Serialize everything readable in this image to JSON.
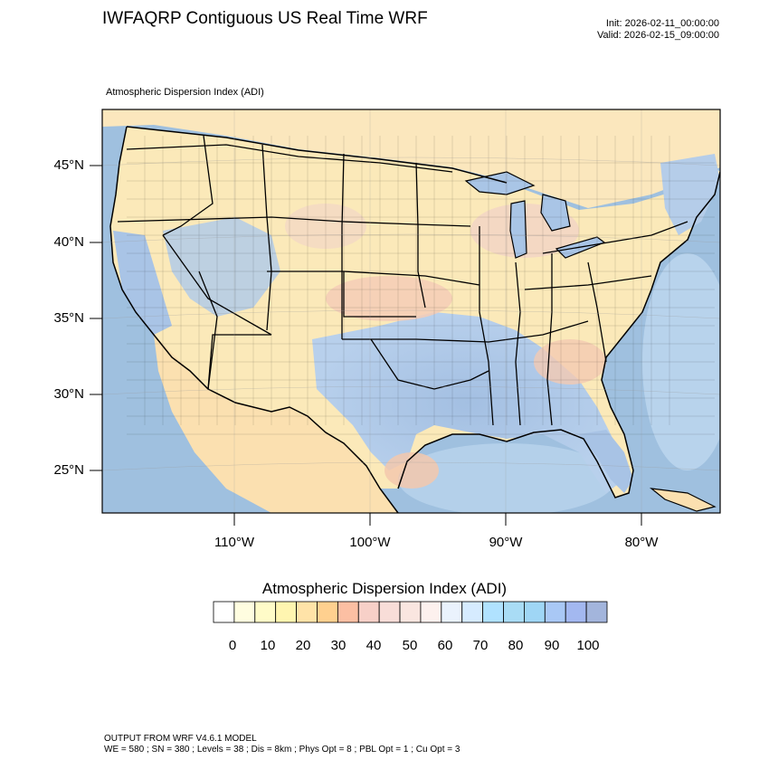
{
  "header": {
    "title": "IWFAQRP Contiguous US Real Time WRF",
    "init": "Init: 2026-02-11_00:00:00",
    "valid": "Valid: 2026-02-15_09:00:00"
  },
  "map": {
    "subtitle": "Atmospheric Dispersion Index   (ADI)",
    "lat_labels": [
      "45°N",
      "40°N",
      "35°N",
      "30°N",
      "25°N"
    ],
    "lon_labels": [
      "110°W",
      "100°W",
      "90°W",
      "80°W"
    ],
    "field_colors": {
      "ocean": "#8fb6d9",
      "ocean_light": "#c9dcef",
      "land_low": "#fbe9b9",
      "land_mid": "#f6c9a8",
      "land_high": "#a9c7e6",
      "land_very_high": "#7fa6cf"
    }
  },
  "legend": {
    "title": "Atmospheric Dispersion Index  (ADI)",
    "labels": [
      "0",
      "10",
      "20",
      "30",
      "40",
      "50",
      "60",
      "70",
      "80",
      "90",
      "100"
    ],
    "colors": [
      "#ffffff",
      "#fffde0",
      "#fffbc8",
      "#fff5b0",
      "#ffe3a8",
      "#ffd08f",
      "#fcbfa3",
      "#f7d0c8",
      "#f8ddd8",
      "#fae6e0",
      "#fdf1ee",
      "#eaf2fd",
      "#d6ebff",
      "#b0e2ff",
      "#a9dcf5",
      "#9fd6f5",
      "#a9c8f5",
      "#a3b8f0",
      "#a3b5dc"
    ]
  },
  "footer": {
    "line1": "OUTPUT FROM WRF V4.6.1 MODEL",
    "line2": "WE = 580 ; SN = 380 ; Levels = 38 ; Dis = 8km ; Phys Opt = 8 ; PBL Opt = 1 ; Cu Opt = 3"
  }
}
